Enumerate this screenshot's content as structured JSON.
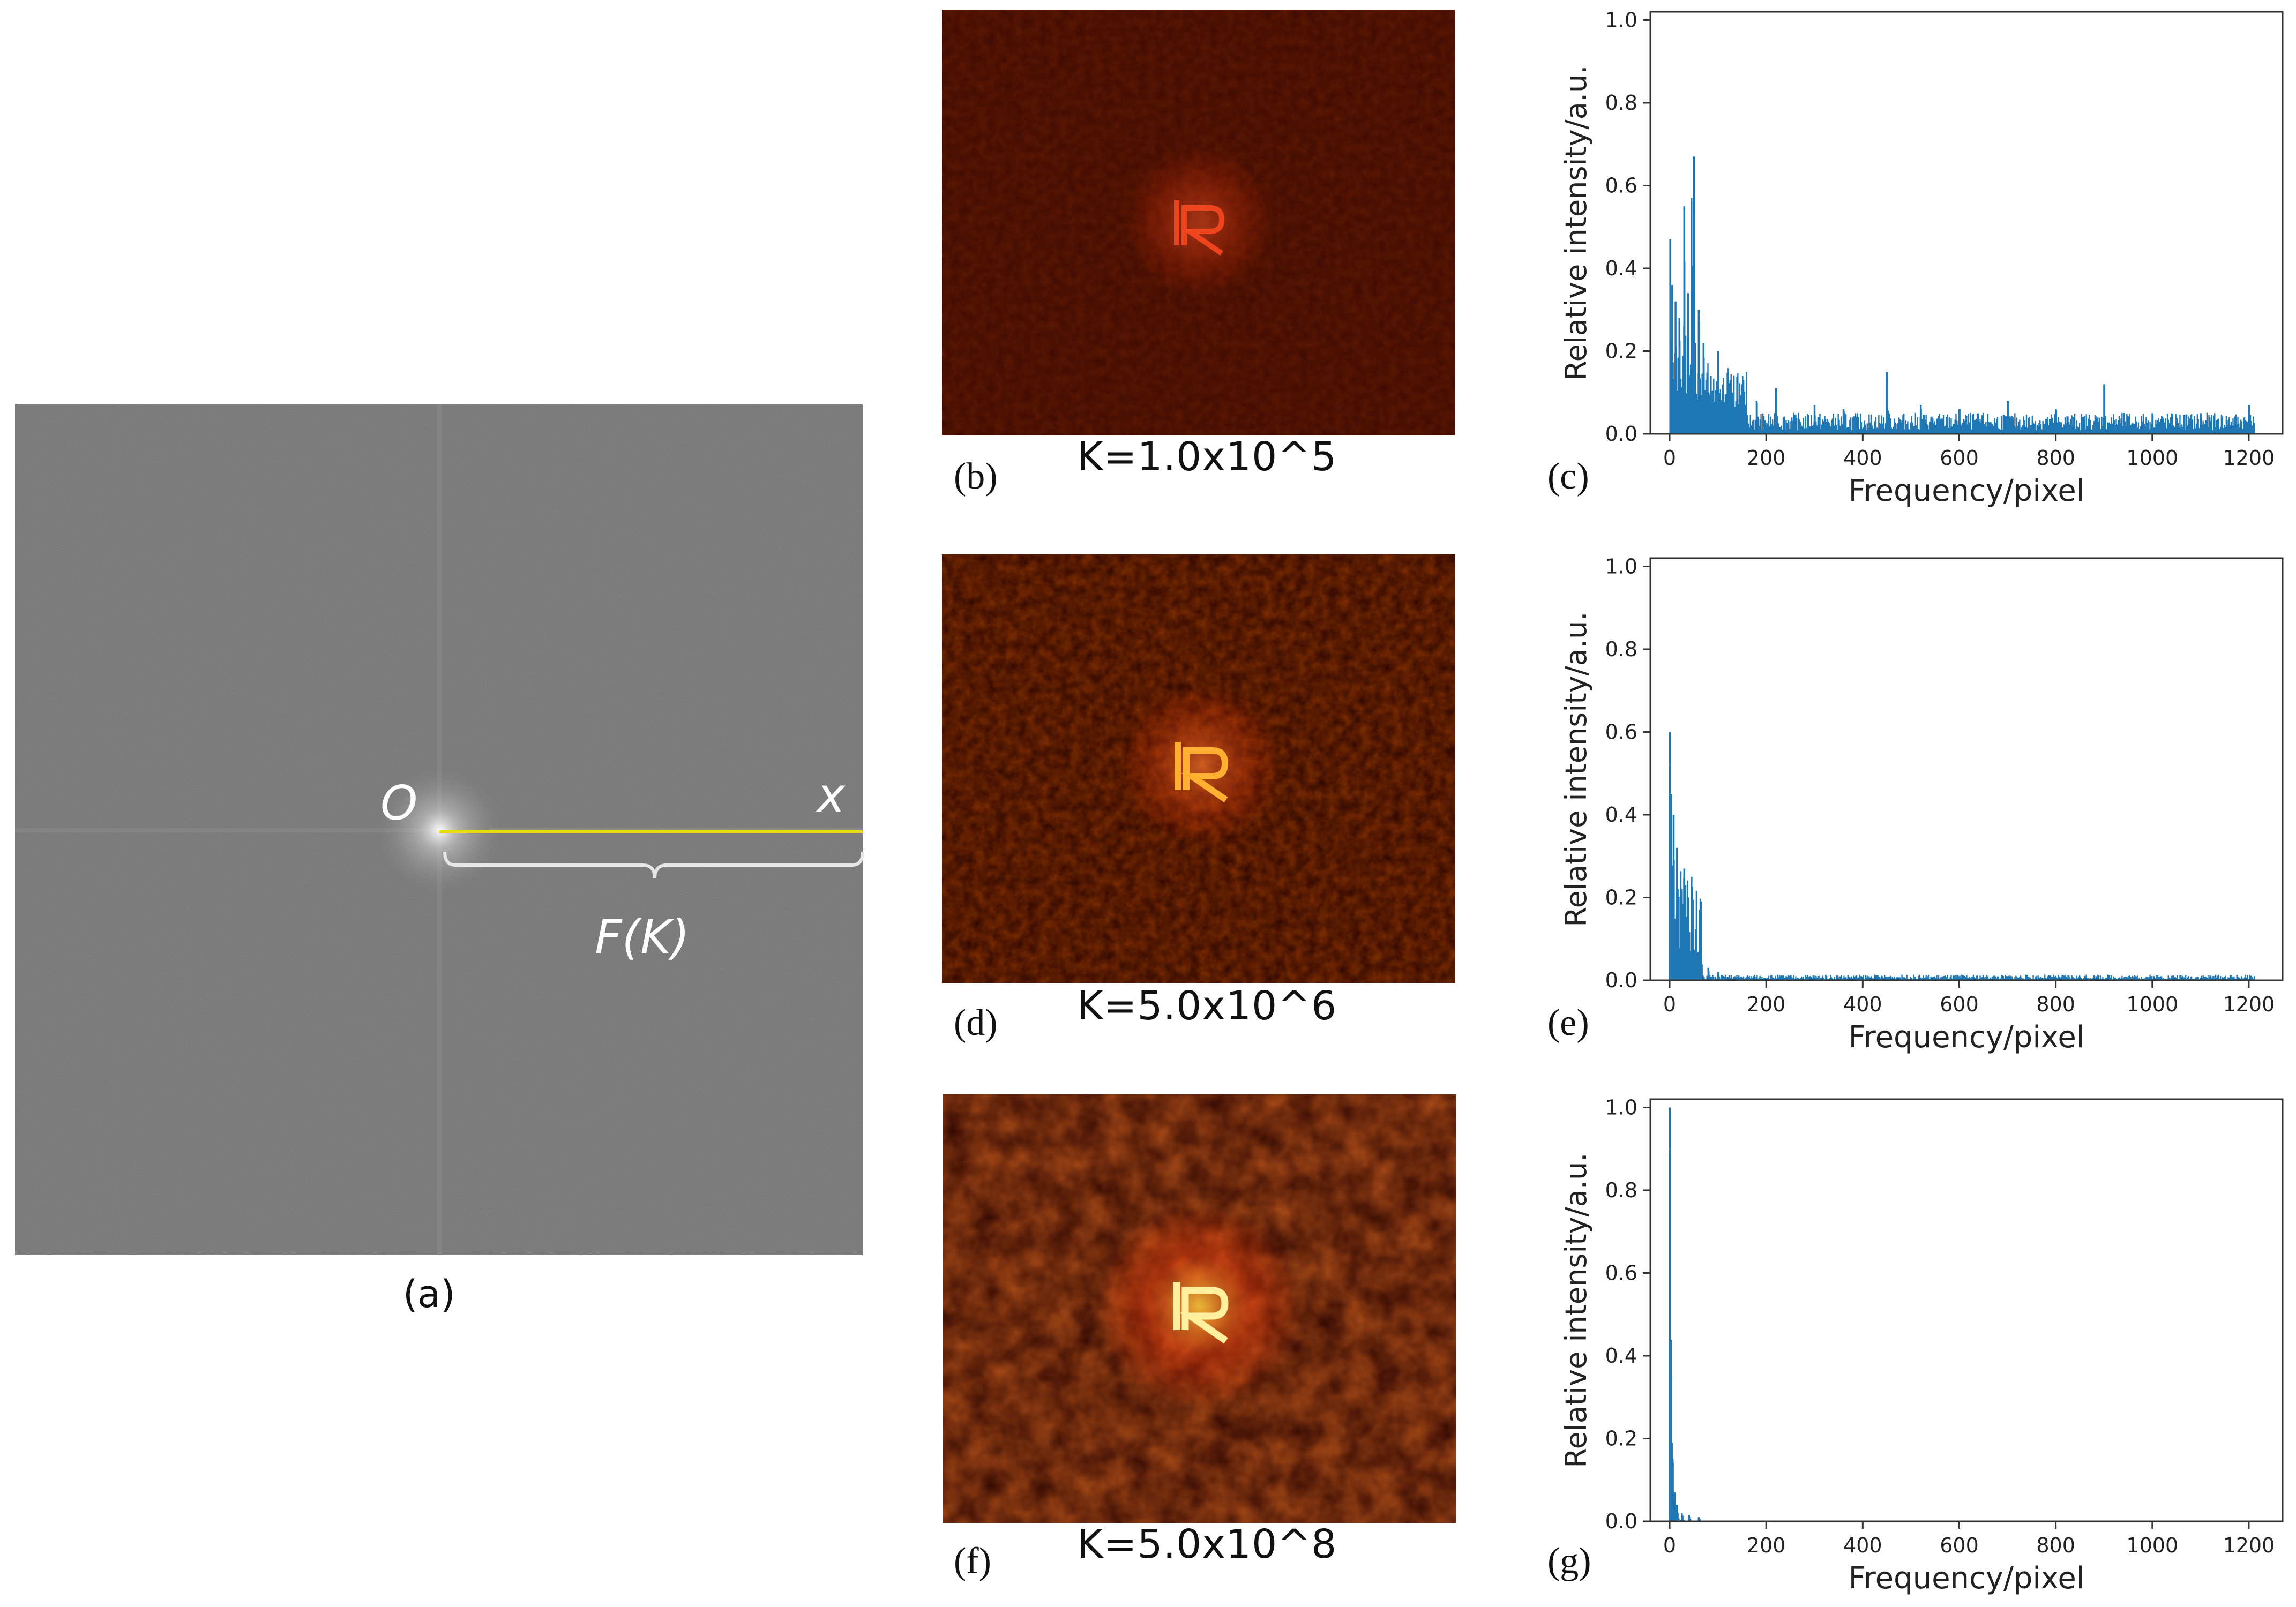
{
  "panel_a": {
    "label": "(a)",
    "origin_label": "O",
    "axis_label": "x",
    "bracket_label": "F(K)",
    "colors": {
      "background": "#6f6f6f",
      "axis_line": "#e8dc10",
      "bracket": "#e6e6e6"
    }
  },
  "micrographs": [
    {
      "letter": "(b)",
      "k_label": "K=1.0x10^5"
    },
    {
      "letter": "(d)",
      "k_label": "K=5.0x10^6"
    },
    {
      "letter": "(f)",
      "k_label": "K=5.0x10^8"
    }
  ],
  "plot_letters": [
    "(c)",
    "(e)",
    "(g)"
  ],
  "chart_data": [
    {
      "type": "bar",
      "panel": "(c)",
      "xlabel": "Frequency/pixel",
      "ylabel": "Relative intensity/a.u.",
      "xlim": [
        -40,
        1270
      ],
      "ylim": [
        0,
        1.02
      ],
      "xticks": [
        0,
        200,
        400,
        600,
        800,
        1000,
        1200
      ],
      "yticks": [
        0.0,
        0.2,
        0.4,
        0.6,
        0.8,
        1.0
      ],
      "peaks": [
        [
          1,
          0.47
        ],
        [
          5,
          0.36
        ],
        [
          12,
          0.32
        ],
        [
          20,
          0.28
        ],
        [
          30,
          0.55
        ],
        [
          38,
          0.34
        ],
        [
          45,
          0.57
        ],
        [
          50,
          0.67
        ],
        [
          60,
          0.3
        ],
        [
          70,
          0.22
        ],
        [
          85,
          0.14
        ],
        [
          100,
          0.2
        ],
        [
          130,
          0.1
        ],
        [
          150,
          0.12
        ],
        [
          180,
          0.08
        ],
        [
          220,
          0.11
        ],
        [
          300,
          0.07
        ],
        [
          360,
          0.06
        ],
        [
          450,
          0.15
        ],
        [
          520,
          0.07
        ],
        [
          600,
          0.06
        ],
        [
          700,
          0.08
        ],
        [
          800,
          0.06
        ],
        [
          900,
          0.12
        ],
        [
          1000,
          0.05
        ],
        [
          1100,
          0.05
        ],
        [
          1200,
          0.07
        ]
      ],
      "tail_level": 0.03,
      "color": "#1f77b4"
    },
    {
      "type": "bar",
      "panel": "(e)",
      "xlabel": "Frequency/pixel",
      "ylabel": "Relative intensity/a.u.",
      "xlim": [
        -40,
        1270
      ],
      "ylim": [
        0,
        1.02
      ],
      "xticks": [
        0,
        200,
        400,
        600,
        800,
        1000,
        1200
      ],
      "yticks": [
        0.0,
        0.2,
        0.4,
        0.6,
        0.8,
        1.0
      ],
      "peaks": [
        [
          0,
          0.6
        ],
        [
          3,
          0.45
        ],
        [
          8,
          0.4
        ],
        [
          15,
          0.32
        ],
        [
          25,
          0.22
        ],
        [
          30,
          0.27
        ],
        [
          38,
          0.2
        ],
        [
          45,
          0.25
        ],
        [
          55,
          0.12
        ],
        [
          65,
          0.06
        ],
        [
          80,
          0.03
        ],
        [
          100,
          0.02
        ]
      ],
      "tail_level": 0.008,
      "color": "#1f77b4"
    },
    {
      "type": "bar",
      "panel": "(g)",
      "xlabel": "Frequency/pixel",
      "ylabel": "Relative intensity/a.u.",
      "xlim": [
        -40,
        1270
      ],
      "ylim": [
        0,
        1.02
      ],
      "xticks": [
        0,
        200,
        400,
        600,
        800,
        1000,
        1200
      ],
      "yticks": [
        0.0,
        0.2,
        0.4,
        0.6,
        0.8,
        1.0
      ],
      "peaks": [
        [
          0,
          1.0
        ],
        [
          3,
          0.35
        ],
        [
          6,
          0.15
        ],
        [
          10,
          0.07
        ],
        [
          15,
          0.04
        ],
        [
          25,
          0.02
        ],
        [
          40,
          0.015
        ],
        [
          60,
          0.01
        ]
      ],
      "tail_level": 0.0,
      "color": "#1f77b4"
    }
  ]
}
